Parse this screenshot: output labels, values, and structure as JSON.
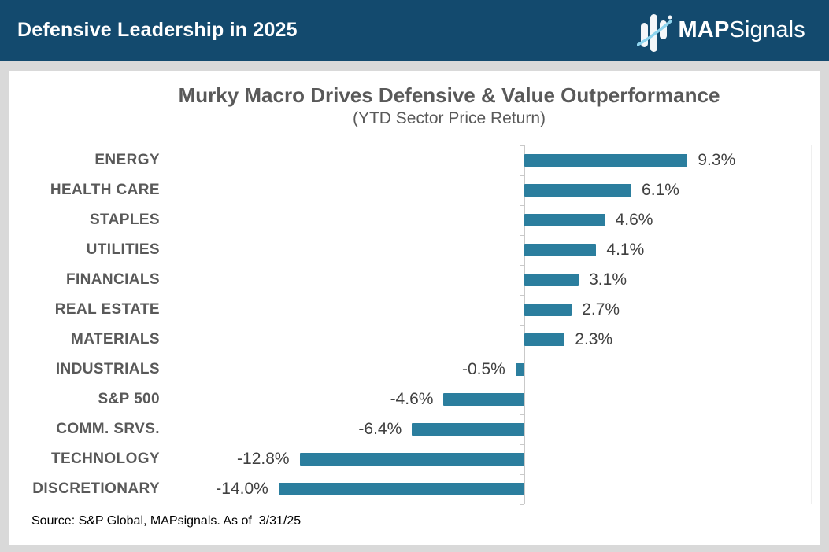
{
  "header": {
    "title": "Defensive Leadership in 2025",
    "logo": {
      "map": "MAP",
      "signals": "Signals"
    }
  },
  "chart_data": {
    "type": "bar",
    "orientation": "horizontal",
    "title": "Murky Macro Drives Defensive & Value Outperformance",
    "subtitle": "(YTD Sector Price Return)",
    "categories": [
      "ENERGY",
      "HEALTH CARE",
      "STAPLES",
      "UTILITIES",
      "FINANCIALS",
      "REAL ESTATE",
      "MATERIALS",
      "INDUSTRIALS",
      "S&P 500",
      "COMM. SRVS.",
      "TECHNOLOGY",
      "DISCRETIONARY"
    ],
    "values": [
      9.3,
      6.1,
      4.6,
      4.1,
      3.1,
      2.7,
      2.3,
      -0.5,
      -4.6,
      -6.4,
      -12.8,
      -14.0
    ],
    "value_labels": [
      "9.3%",
      "6.1%",
      "4.6%",
      "4.1%",
      "3.1%",
      "2.7%",
      "2.3%",
      "-0.5%",
      "-4.6%",
      "-6.4%",
      "-12.8%",
      "-14.0%"
    ],
    "xlim": [
      -14.5,
      10
    ],
    "grid": false,
    "legend": null,
    "bar_color": "#2b7e9e",
    "axis_color": "#c9c9c9"
  },
  "footer": {
    "source": "Source: S&P Global, MAPsignals. As of  3/31/25"
  },
  "colors": {
    "header_bg": "#134a6e",
    "frame_bg": "#d9d9d9",
    "bar": "#2b7e9e",
    "title_text": "#595959",
    "value_text": "#404040"
  }
}
